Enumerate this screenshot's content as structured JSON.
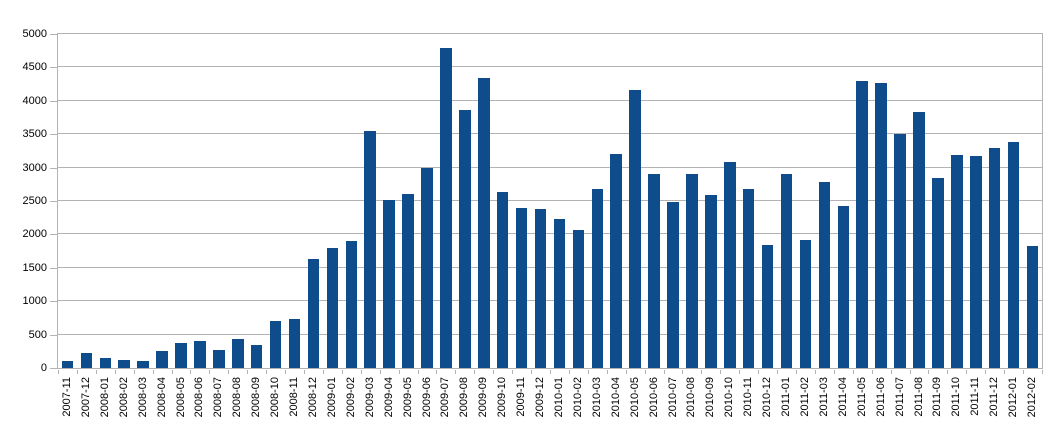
{
  "chart_data": {
    "type": "bar",
    "title": "",
    "xlabel": "",
    "ylabel": "",
    "categories": [
      "2007-11",
      "2007-12",
      "2008-01",
      "2008-02",
      "2008-03",
      "2008-04",
      "2008-05",
      "2008-06",
      "2008-07",
      "2008-08",
      "2008-09",
      "2008-10",
      "2008-11",
      "2008-12",
      "2009-01",
      "2009-02",
      "2009-03",
      "2009-04",
      "2009-05",
      "2009-06",
      "2009-07",
      "2009-08",
      "2009-09",
      "2009-10",
      "2009-11",
      "2009-12",
      "2010-01",
      "2010-02",
      "2010-03",
      "2010-04",
      "2010-05",
      "2010-06",
      "2010-07",
      "2010-08",
      "2010-09",
      "2010-10",
      "2010-11",
      "2010-12",
      "2011-01",
      "2011-02",
      "2011-03",
      "2011-04",
      "2011-05",
      "2011-06",
      "2011-07",
      "2011-08",
      "2011-09",
      "2011-10",
      "2011-11",
      "2011-12",
      "2012-01",
      "2012-02"
    ],
    "values": [
      100,
      230,
      150,
      120,
      110,
      260,
      380,
      400,
      270,
      430,
      340,
      700,
      730,
      1630,
      1800,
      1900,
      3550,
      2510,
      2610,
      3000,
      4790,
      3860,
      4340,
      2640,
      2390,
      2380,
      2230,
      2070,
      2680,
      3200,
      4160,
      2900,
      2490,
      2900,
      2590,
      3080,
      2680,
      1840,
      2900,
      1920,
      2790,
      2420,
      4290,
      4260,
      3510,
      3840,
      2850,
      3190,
      3170,
      3300,
      3390,
      1820
    ],
    "ylim": [
      0,
      5000
    ],
    "ytick_step": 500,
    "y_tick_labels": [
      "0",
      "500",
      "1000",
      "1500",
      "2000",
      "2500",
      "3000",
      "3500",
      "4000",
      "4500",
      "5000"
    ],
    "grid": true,
    "legend": false,
    "bar_color": "#0e4c8c",
    "axis_color": "#b3b3b3",
    "label_color": "#000000",
    "background_color": "#ffffff"
  }
}
